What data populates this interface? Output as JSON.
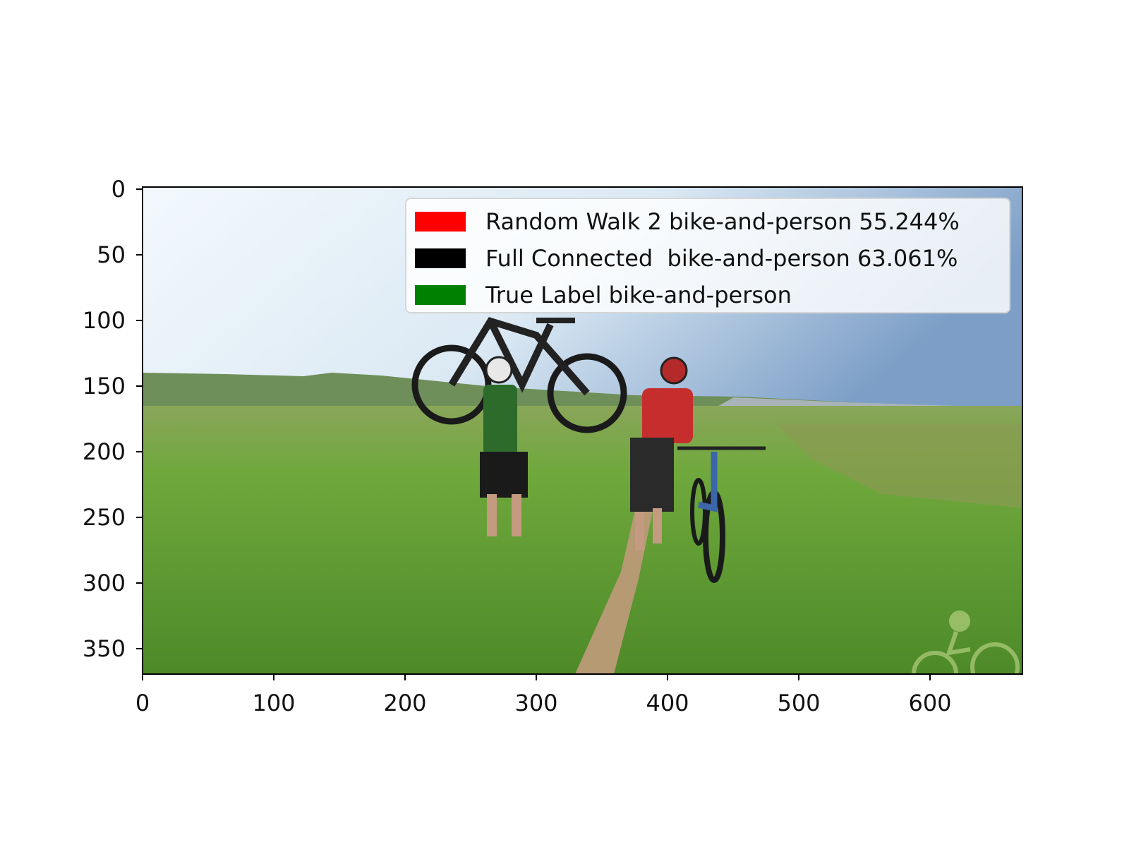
{
  "legend": {
    "entries": [
      {
        "label": "Random Walk 2 bike-and-person 55.244%",
        "color": "#ff0000"
      },
      {
        "label": "Full Connected  bike-and-person 63.061%",
        "color": "#000000"
      },
      {
        "label": "True Label bike-and-person",
        "color": "#008000"
      }
    ]
  },
  "axes": {
    "x_ticks": [
      "0",
      "100",
      "200",
      "300",
      "400",
      "500",
      "600"
    ],
    "y_ticks": [
      "0",
      "50",
      "100",
      "150",
      "200",
      "250",
      "300",
      "350"
    ]
  },
  "photo": {
    "description_icons": [
      "person-carrying-bike",
      "person-walking-bike",
      "cycling-logo-watermark"
    ]
  }
}
